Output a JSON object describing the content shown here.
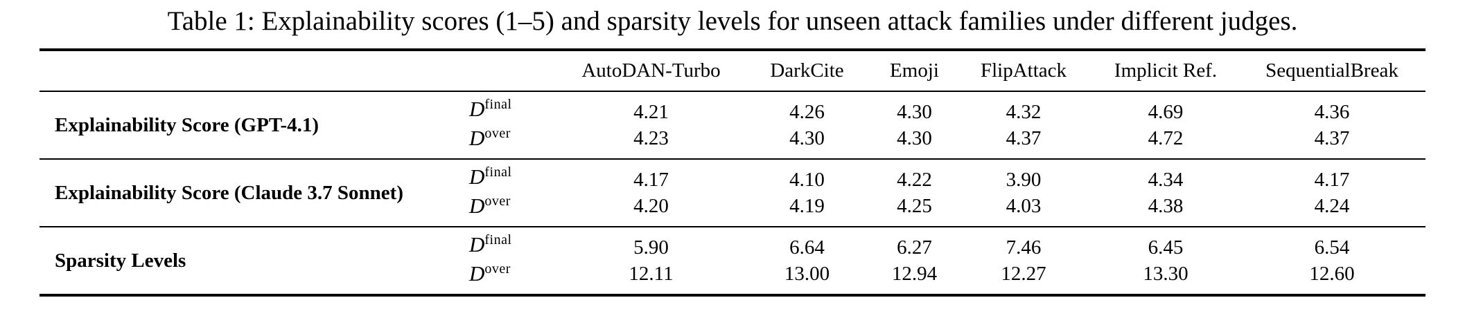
{
  "caption": "Table 1: Explainability scores (1–5) and sparsity levels for unseen attack families under different judges.",
  "columns": [
    "AutoDAN-Turbo",
    "DarkCite",
    "Emoji",
    "FlipAttack",
    "Implicit Ref.",
    "SequentialBreak"
  ],
  "row_symbol": {
    "base": "D",
    "sup_final": "final",
    "sup_over": "over"
  },
  "blocks": [
    {
      "label": "Explainability Score (GPT-4.1)",
      "rows": [
        {
          "metric": "D-final",
          "values": [
            "4.21",
            "4.26",
            "4.30",
            "4.32",
            "4.69",
            "4.36"
          ]
        },
        {
          "metric": "D-over",
          "values": [
            "4.23",
            "4.30",
            "4.30",
            "4.37",
            "4.72",
            "4.37"
          ]
        }
      ]
    },
    {
      "label": "Explainability Score (Claude 3.7 Sonnet)",
      "rows": [
        {
          "metric": "D-final",
          "values": [
            "4.17",
            "4.10",
            "4.22",
            "3.90",
            "4.34",
            "4.17"
          ]
        },
        {
          "metric": "D-over",
          "values": [
            "4.20",
            "4.19",
            "4.25",
            "4.03",
            "4.38",
            "4.24"
          ]
        }
      ]
    },
    {
      "label": "Sparsity Levels",
      "rows": [
        {
          "metric": "D-final",
          "values": [
            "5.90",
            "6.64",
            "6.27",
            "7.46",
            "6.45",
            "6.54"
          ]
        },
        {
          "metric": "D-over",
          "values": [
            "12.11",
            "13.00",
            "12.94",
            "12.27",
            "13.30",
            "12.60"
          ]
        }
      ]
    }
  ],
  "colors": {
    "text": "#000000",
    "background": "#ffffff",
    "rule": "#000000"
  }
}
